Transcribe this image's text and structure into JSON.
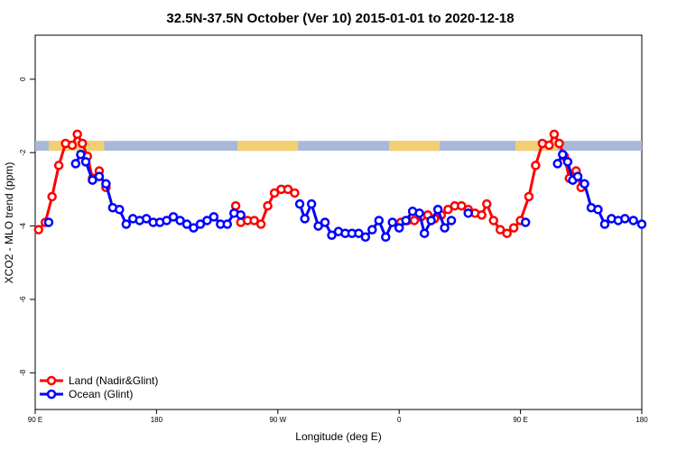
{
  "chart_data": {
    "type": "line",
    "title": "32.5N-37.5N October (Ver 10)   2015-01-01 to 2020-12-18",
    "xlabel": "Longitude (deg E)",
    "ylabel": "XCO2 - MLO trend (ppm)",
    "xlim": [
      90,
      450
    ],
    "ylim": [
      -9,
      1.2
    ],
    "x_ticks": [
      {
        "value": 90,
        "label": "90 E"
      },
      {
        "value": 162,
        "label": "180"
      },
      {
        "value": 234,
        "label": "90 W"
      },
      {
        "value": 306,
        "label": "0"
      },
      {
        "value": 378,
        "label": "90 E"
      },
      {
        "value": 450,
        "label": "180"
      }
    ],
    "y_ticks": [
      {
        "value": 0,
        "label": "0"
      },
      {
        "value": -2,
        "label": "-2"
      },
      {
        "value": -4,
        "label": "-4"
      },
      {
        "value": -6,
        "label": "-6"
      },
      {
        "value": -8,
        "label": "-8"
      }
    ],
    "grid": false,
    "legend_position": "bottom-left",
    "landmask_band": {
      "y_top": -1.68,
      "y_bottom": -1.95,
      "ocean_color": "#a8b8d8",
      "land_color": "#f2cf73",
      "land_x_ranges": [
        [
          98,
          131
        ],
        [
          210,
          246
        ],
        [
          300,
          330
        ],
        [
          375,
          400
        ]
      ]
    },
    "series": [
      {
        "name": "Land (Nadir&Glint)",
        "color": "#ff0000",
        "segments": [
          [
            [
              92,
              -4.1
            ],
            [
              96,
              -3.9
            ],
            [
              100,
              -3.2
            ],
            [
              104,
              -2.35
            ],
            [
              108,
              -1.75
            ],
            [
              112,
              -1.8
            ],
            [
              115,
              -1.5
            ],
            [
              118,
              -1.75
            ],
            [
              121,
              -2.1
            ],
            [
              124,
              -2.7
            ],
            [
              128,
              -2.5
            ],
            [
              132,
              -2.95
            ]
          ],
          [
            [
              209,
              -3.45
            ],
            [
              212,
              -3.9
            ],
            [
              216,
              -3.85
            ],
            [
              220,
              -3.85
            ],
            [
              224,
              -3.95
            ],
            [
              228,
              -3.45
            ],
            [
              232,
              -3.1
            ],
            [
              236,
              -3.0
            ],
            [
              240,
              -3.0
            ],
            [
              244,
              -3.1
            ]
          ],
          [
            [
              307,
              -3.9
            ],
            [
              311,
              -3.85
            ],
            [
              315,
              -3.85
            ],
            [
              319,
              -3.75
            ],
            [
              323,
              -3.7
            ],
            [
              327,
              -3.8
            ],
            [
              331,
              -3.7
            ],
            [
              335,
              -3.55
            ],
            [
              339,
              -3.45
            ],
            [
              343,
              -3.45
            ],
            [
              347,
              -3.55
            ],
            [
              351,
              -3.65
            ],
            [
              355,
              -3.7
            ],
            [
              358,
              -3.4
            ],
            [
              362,
              -3.85
            ],
            [
              366,
              -4.1
            ],
            [
              370,
              -4.2
            ],
            [
              374,
              -4.05
            ],
            [
              378,
              -3.85
            ],
            [
              383,
              -3.2
            ],
            [
              387,
              -2.35
            ],
            [
              391,
              -1.75
            ],
            [
              395,
              -1.8
            ],
            [
              398,
              -1.5
            ],
            [
              401,
              -1.75
            ],
            [
              404,
              -2.1
            ],
            [
              407,
              -2.7
            ],
            [
              411,
              -2.5
            ],
            [
              414,
              -2.95
            ]
          ]
        ]
      },
      {
        "name": "Ocean (Glint)",
        "color": "#0000ff",
        "segments": [
          [
            [
              98,
              -3.9
            ]
          ],
          [
            [
              114,
              -2.3
            ],
            [
              117,
              -2.05
            ],
            [
              120,
              -2.25
            ],
            [
              124,
              -2.75
            ],
            [
              128,
              -2.65
            ],
            [
              132,
              -2.85
            ],
            [
              136,
              -3.5
            ],
            [
              140,
              -3.55
            ],
            [
              144,
              -3.95
            ],
            [
              148,
              -3.8
            ],
            [
              152,
              -3.85
            ],
            [
              156,
              -3.8
            ],
            [
              160,
              -3.9
            ],
            [
              164,
              -3.9
            ],
            [
              168,
              -3.85
            ],
            [
              172,
              -3.75
            ],
            [
              176,
              -3.85
            ],
            [
              180,
              -3.95
            ],
            [
              184,
              -4.05
            ],
            [
              188,
              -3.95
            ],
            [
              192,
              -3.85
            ],
            [
              196,
              -3.75
            ],
            [
              200,
              -3.95
            ],
            [
              204,
              -3.95
            ],
            [
              208,
              -3.65
            ],
            [
              212,
              -3.7
            ]
          ],
          [
            [
              247,
              -3.4
            ],
            [
              250,
              -3.8
            ],
            [
              254,
              -3.4
            ],
            [
              258,
              -4.0
            ],
            [
              262,
              -3.9
            ],
            [
              266,
              -4.25
            ],
            [
              270,
              -4.15
            ],
            [
              274,
              -4.2
            ],
            [
              278,
              -4.2
            ],
            [
              282,
              -4.2
            ],
            [
              286,
              -4.3
            ],
            [
              290,
              -4.1
            ],
            [
              294,
              -3.85
            ],
            [
              298,
              -4.3
            ],
            [
              302,
              -3.9
            ],
            [
              306,
              -4.05
            ],
            [
              310,
              -3.85
            ],
            [
              314,
              -3.6
            ],
            [
              318,
              -3.65
            ],
            [
              321,
              -4.2
            ],
            [
              325,
              -3.85
            ],
            [
              329,
              -3.55
            ],
            [
              333,
              -4.05
            ],
            [
              337,
              -3.85
            ]
          ],
          [
            [
              347,
              -3.65
            ]
          ],
          [
            [
              381,
              -3.9
            ]
          ],
          [
            [
              400,
              -2.3
            ],
            [
              403,
              -2.05
            ],
            [
              406,
              -2.25
            ],
            [
              409,
              -2.75
            ],
            [
              412,
              -2.65
            ],
            [
              416,
              -2.85
            ],
            [
              420,
              -3.5
            ],
            [
              424,
              -3.55
            ],
            [
              428,
              -3.95
            ],
            [
              432,
              -3.8
            ],
            [
              436,
              -3.85
            ],
            [
              440,
              -3.8
            ],
            [
              445,
              -3.85
            ],
            [
              450,
              -3.95
            ]
          ]
        ]
      }
    ]
  }
}
